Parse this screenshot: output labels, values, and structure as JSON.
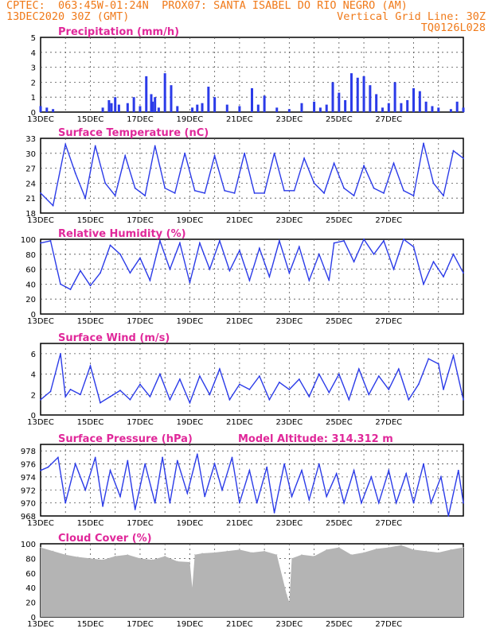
{
  "header": {
    "line1": "CPTEC:  063:45W-01:24N  PROX07: SANTA ISABEL DO RIO NEGRO (AM)",
    "line2_left": "13DEC2020 30Z (GMT)",
    "line2_right": "Vertical Grid Line: 30Z",
    "line3_right": "TQ0126L028"
  },
  "colors": {
    "header": "#f07a1a",
    "title": "#e0289a",
    "series": "#2b3be8",
    "cloud": "#b4b4b4"
  },
  "chart_data": [
    {
      "id": "precip",
      "type": "bar",
      "title": "Precipitation (mm/h)",
      "ylim": [
        0,
        5
      ],
      "yticks": [
        "0",
        "1",
        "2",
        "3",
        "4",
        "5"
      ],
      "xticks": [
        "13DEC",
        "15DEC",
        "17DEC",
        "19DEC",
        "21DEC",
        "23DEC",
        "25DEC",
        "27DEC"
      ],
      "cut_label": "",
      "x_days": [
        0.0,
        0.25,
        0.5,
        2.5,
        2.75,
        2.85,
        3.0,
        3.15,
        3.5,
        3.75,
        4.0,
        4.25,
        4.45,
        4.5,
        4.6,
        4.75,
        5.0,
        5.25,
        5.5,
        6.1,
        6.3,
        6.5,
        6.75,
        7.0,
        7.5,
        8.0,
        8.5,
        8.75,
        9.0,
        9.5,
        10.0,
        10.5,
        11.0,
        11.25,
        11.5,
        11.75,
        12.0,
        12.25,
        12.5,
        12.75,
        13.0,
        13.25,
        13.5,
        13.75,
        14.0,
        14.25,
        14.5,
        14.75,
        15.0,
        15.25,
        15.5,
        15.75,
        16.0,
        16.5,
        16.75,
        17.0
      ],
      "values": [
        0.4,
        0.3,
        0.2,
        0.3,
        0.8,
        0.6,
        1.0,
        0.5,
        0.6,
        1.0,
        0.4,
        2.4,
        1.2,
        0.7,
        1.0,
        0.3,
        2.6,
        1.8,
        0.4,
        0.3,
        0.5,
        0.6,
        1.7,
        1.0,
        0.5,
        0.4,
        1.6,
        0.5,
        1.1,
        0.3,
        0.2,
        0.6,
        0.7,
        0.3,
        0.5,
        2.0,
        1.3,
        0.8,
        2.6,
        2.3,
        2.4,
        1.8,
        1.2,
        0.3,
        0.6,
        2.0,
        0.6,
        0.8,
        1.6,
        1.4,
        0.7,
        0.4,
        0.3,
        0.2,
        0.7,
        0.3
      ]
    },
    {
      "id": "temp",
      "type": "line",
      "title": "Surface Temperature (nC)",
      "ylim": [
        18,
        33
      ],
      "yticks": [
        "18",
        "21",
        "24",
        "27",
        "30",
        "33"
      ],
      "xticks": [
        "13DEC",
        "15DEC",
        "17DEC",
        "19DEC",
        "21DEC",
        "23DEC",
        "25DEC",
        "27DEC"
      ],
      "cut_label": "",
      "x_days": [
        0,
        0.5,
        1.0,
        1.4,
        1.8,
        2.2,
        2.6,
        3.0,
        3.4,
        3.8,
        4.2,
        4.6,
        5.0,
        5.4,
        5.8,
        6.2,
        6.6,
        7.0,
        7.4,
        7.8,
        8.2,
        8.6,
        9.0,
        9.4,
        9.8,
        10.2,
        10.6,
        11.0,
        11.4,
        11.8,
        12.2,
        12.6,
        13.0,
        13.4,
        13.8,
        14.2,
        14.6,
        15.0,
        15.4,
        15.8,
        16.2,
        16.6,
        17.0
      ],
      "values": [
        22.0,
        19.5,
        31.8,
        26.0,
        21.0,
        31.5,
        24.0,
        21.5,
        29.5,
        23.0,
        21.5,
        31.5,
        23.0,
        22.0,
        30.0,
        22.5,
        22.0,
        29.5,
        22.5,
        22.0,
        30.0,
        22.0,
        22.0,
        30.0,
        22.5,
        22.5,
        29.0,
        24.0,
        22.0,
        28.0,
        23.0,
        21.5,
        27.5,
        23.0,
        22.0,
        28.0,
        22.5,
        21.5,
        32.0,
        24.0,
        21.5,
        30.5,
        29.0
      ]
    },
    {
      "id": "rh",
      "type": "line",
      "title": "Relative Humidity (%)",
      "ylim": [
        0,
        100
      ],
      "yticks": [
        "0",
        "20",
        "40",
        "60",
        "80",
        "100"
      ],
      "xticks": [
        "13DEC",
        "15DEC",
        "17DEC",
        "19DEC",
        "21DEC",
        "23DEC",
        "25DEC",
        "27DEC"
      ],
      "cut_label": "",
      "x_days": [
        0,
        0.4,
        0.8,
        1.2,
        1.6,
        2.0,
        2.4,
        2.8,
        3.2,
        3.6,
        4.0,
        4.4,
        4.8,
        5.2,
        5.6,
        6.0,
        6.4,
        6.8,
        7.2,
        7.6,
        8.0,
        8.4,
        8.8,
        9.2,
        9.6,
        10.0,
        10.4,
        10.8,
        11.2,
        11.6,
        11.8,
        12.2,
        12.6,
        13.0,
        13.4,
        13.8,
        14.2,
        14.6,
        15.0,
        15.4,
        15.8,
        16.2,
        16.6,
        17.0
      ],
      "values": [
        95,
        98,
        40,
        33,
        58,
        38,
        55,
        92,
        80,
        55,
        75,
        45,
        98,
        60,
        95,
        42,
        95,
        60,
        98,
        58,
        85,
        45,
        88,
        50,
        98,
        55,
        90,
        45,
        80,
        45,
        95,
        98,
        70,
        100,
        80,
        98,
        60,
        100,
        90,
        40,
        70,
        50,
        80,
        55
      ]
    },
    {
      "id": "wind",
      "type": "line",
      "title": "Surface Wind (m/s)",
      "ylim": [
        0,
        7
      ],
      "yticks": [
        "0",
        "2",
        "4",
        "6"
      ],
      "xticks": [
        "13DEC",
        "15DEC",
        "17DEC",
        "19DEC",
        "21DEC",
        "23DEC",
        "25DEC",
        "27DEC"
      ],
      "cut_label": "",
      "x_days": [
        0,
        0.4,
        0.8,
        1.0,
        1.2,
        1.6,
        2.0,
        2.4,
        2.8,
        3.2,
        3.6,
        4.0,
        4.4,
        4.8,
        5.2,
        5.6,
        6.0,
        6.4,
        6.8,
        7.2,
        7.6,
        8.0,
        8.4,
        8.8,
        9.2,
        9.6,
        10.0,
        10.4,
        10.8,
        11.2,
        11.6,
        12.0,
        12.4,
        12.8,
        13.2,
        13.6,
        14.0,
        14.4,
        14.8,
        15.2,
        15.6,
        16.0,
        16.2,
        16.6,
        17.0
      ],
      "values": [
        1.5,
        2.3,
        6.0,
        1.8,
        2.5,
        2.0,
        4.8,
        1.2,
        1.8,
        2.4,
        1.5,
        3.0,
        1.8,
        4.0,
        1.5,
        3.5,
        1.2,
        3.8,
        2.0,
        4.5,
        1.5,
        3.0,
        2.5,
        3.8,
        1.5,
        3.2,
        2.5,
        3.5,
        1.8,
        4.0,
        2.2,
        4.0,
        1.5,
        4.5,
        2.0,
        3.8,
        2.5,
        4.5,
        1.5,
        3.0,
        5.5,
        5.0,
        2.5,
        5.8,
        1.5
      ]
    },
    {
      "id": "pressure",
      "type": "line",
      "title": "Surface Pressure (hPa)",
      "extra_label": "Model Altitude: 314.312 m",
      "ylim": [
        968,
        979
      ],
      "yticks": [
        "968",
        "970",
        "972",
        "974",
        "976",
        "978"
      ],
      "xticks": [
        "13DEC",
        "15DEC",
        "17DEC",
        "19DEC",
        "21DEC",
        "23DEC",
        "25DEC",
        "27DEC"
      ],
      "cut_label": "",
      "x_days": [
        0,
        0.3,
        0.7,
        1.0,
        1.4,
        1.8,
        2.2,
        2.5,
        2.8,
        3.2,
        3.5,
        3.8,
        4.2,
        4.6,
        4.9,
        5.2,
        5.5,
        5.9,
        6.3,
        6.6,
        7.0,
        7.3,
        7.7,
        8.0,
        8.4,
        8.7,
        9.1,
        9.4,
        9.8,
        10.1,
        10.5,
        10.8,
        11.2,
        11.5,
        11.9,
        12.2,
        12.6,
        12.9,
        13.3,
        13.6,
        14.0,
        14.3,
        14.7,
        15.0,
        15.4,
        15.7,
        16.1,
        16.4,
        16.8,
        17.0
      ],
      "values": [
        975.0,
        975.5,
        977.0,
        970.0,
        976.0,
        972.0,
        977.0,
        969.5,
        975.0,
        971.0,
        976.5,
        969.0,
        976.0,
        970.0,
        977.0,
        970.0,
        976.5,
        971.5,
        977.5,
        971.0,
        976.0,
        972.0,
        977.0,
        970.0,
        975.0,
        970.0,
        975.5,
        968.5,
        976.0,
        971.0,
        975.0,
        970.5,
        976.0,
        971.0,
        974.5,
        970.0,
        975.0,
        970.0,
        974.0,
        970.0,
        975.0,
        970.0,
        974.5,
        970.0,
        976.0,
        970.0,
        974.0,
        968.0,
        975.0,
        970.0
      ]
    },
    {
      "id": "cloud",
      "type": "area",
      "title": "Cloud Cover (%)",
      "ylim": [
        0,
        100
      ],
      "yticks": [
        "0",
        "20",
        "40",
        "60",
        "80",
        "100"
      ],
      "xticks": [
        "13DEC",
        "15DEC",
        "17DEC",
        "19DEC",
        "21DEC",
        "23DEC",
        "25DEC",
        "27DEC"
      ],
      "cut_label": "",
      "x_days": [
        0,
        0.5,
        1.0,
        1.5,
        2.0,
        2.5,
        3.0,
        3.5,
        4.0,
        4.5,
        5.0,
        5.5,
        6.0,
        6.1,
        6.2,
        6.5,
        7.0,
        7.5,
        8.0,
        8.5,
        9.0,
        9.5,
        9.9,
        10.0,
        10.1,
        10.5,
        11.0,
        11.5,
        12.0,
        12.5,
        13.0,
        13.5,
        14.0,
        14.5,
        15.0,
        15.5,
        16.0,
        16.5,
        17.0
      ],
      "values": [
        95,
        90,
        85,
        82,
        80,
        78,
        83,
        85,
        80,
        78,
        83,
        76,
        75,
        40,
        85,
        87,
        88,
        90,
        92,
        88,
        90,
        85,
        30,
        20,
        80,
        85,
        83,
        92,
        95,
        85,
        88,
        93,
        95,
        98,
        92,
        90,
        88,
        92,
        95
      ]
    }
  ]
}
